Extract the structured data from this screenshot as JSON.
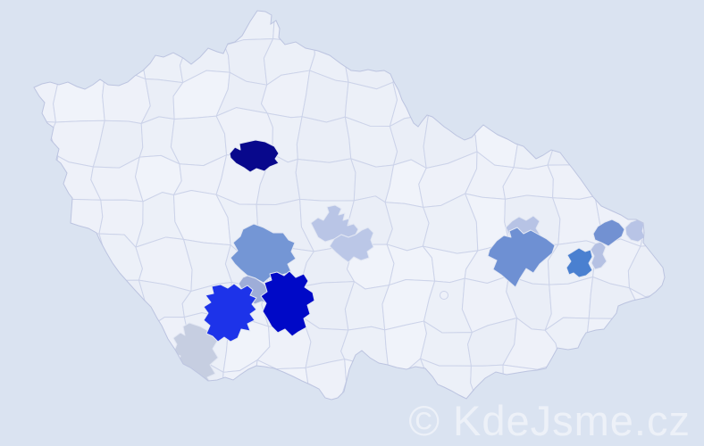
{
  "watermark": {
    "text": "© KdeJsme.cz",
    "color": "#edf1f8"
  },
  "map": {
    "background_color": "#dae3f1",
    "land_fill": "#eef1f9",
    "land_fill_variants": [
      "#eef1f9",
      "#ecf0f8",
      "#f0f3fa",
      "#eaeef7"
    ],
    "district_border_color": "#ccd3e9",
    "country_border_color": "#bcc4e0"
  },
  "highlighted_districts": [
    {
      "id": "capital-navy",
      "color": "#08088c"
    },
    {
      "id": "central-cornflower",
      "color": "#7496d5"
    },
    {
      "id": "central-muted-blue",
      "color": "#9eadd8"
    },
    {
      "id": "south-bright-blue",
      "color": "#1d33e9"
    },
    {
      "id": "south-royal-blue",
      "color": "#0009c7"
    },
    {
      "id": "south-lavender",
      "color": "#c6cee1"
    },
    {
      "id": "highlands-periwinkle-upper",
      "color": "#b9c5e6"
    },
    {
      "id": "highlands-periwinkle-lower",
      "color": "#bbc7e7"
    },
    {
      "id": "east-cornflower",
      "color": "#6e90d3"
    },
    {
      "id": "east-periwinkle-upper",
      "color": "#b7c3e5"
    },
    {
      "id": "east-royal-blue",
      "color": "#4a80d0"
    },
    {
      "id": "east-periwinkle-small",
      "color": "#b5c1e3"
    },
    {
      "id": "northeast-cornflower",
      "color": "#7291d2"
    },
    {
      "id": "northeast-periwinkle",
      "color": "#b8c4e6"
    }
  ]
}
